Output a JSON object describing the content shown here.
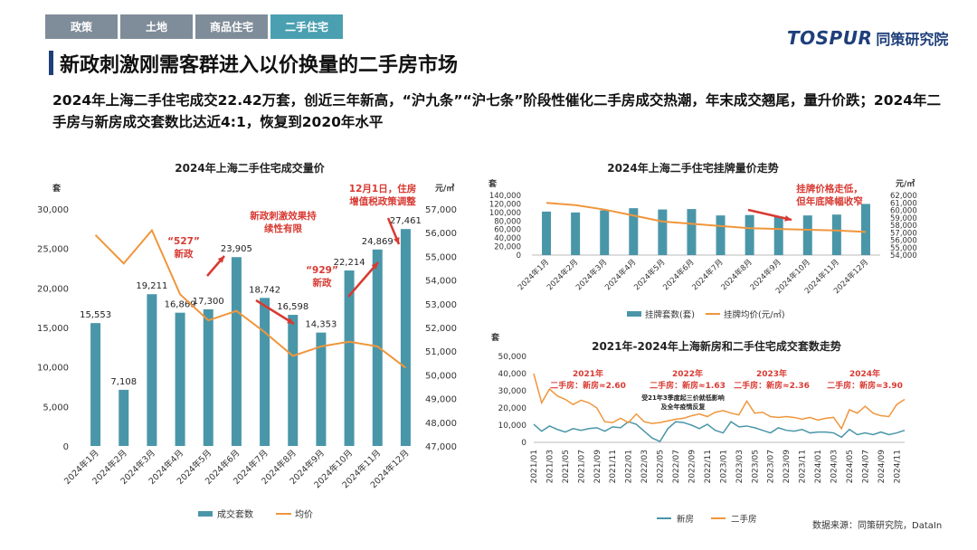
{
  "tabs": [
    "政策",
    "土地",
    "商品住宅",
    "二手住宅"
  ],
  "logo": {
    "brand": "TOSPUR",
    "name": "同策研究院"
  },
  "page_title": "新政刺激刚需客群进入以价换量的二手房市场",
  "summary": "2024年上海二手住宅成交22.42万套，创近三年新高，“沪九条”“沪七条”阶段性催化二手房成交热潮，年末成交翘尾，量升价跌；2024年二手房与新房成交套数比达近4:1，恢复到2020年水平",
  "source": "数据来源：同策研究院，DataIn",
  "colors": {
    "bar": "#4a96a9",
    "line": "#f0963c",
    "new_house": "#4a96a9",
    "annotation": "#d83a33",
    "tab": "#7f8c99",
    "tab_active": "#4aa0b1",
    "title": "#1e3f7a"
  },
  "chart_data": [
    {
      "type": "bar",
      "title": "2024年上海二手住宅成交量价",
      "categories": [
        "2024年1月",
        "2024年2月",
        "2024年3月",
        "2024年4月",
        "2024年5月",
        "2024年6月",
        "2024年7月",
        "2024年8月",
        "2024年9月",
        "2024年10月",
        "2024年11月",
        "2024年12月"
      ],
      "y_left_unit": "套",
      "y_right_unit": "元/㎡",
      "ylim_left": [
        0,
        30000
      ],
      "ylim_right": [
        47000,
        57000
      ],
      "y_left_ticks": [
        "0",
        "5,000",
        "10,000",
        "15,000",
        "20,000",
        "25,000",
        "30,000"
      ],
      "y_right_ticks": [
        "47,000",
        "48,000",
        "49,000",
        "50,000",
        "51,000",
        "52,000",
        "53,000",
        "54,000",
        "55,000",
        "56,000",
        "57,000"
      ],
      "series": [
        {
          "name": "成交套数",
          "type": "bar",
          "axis": "left",
          "values": [
            15553,
            7108,
            19211,
            16869,
            17300,
            23905,
            18742,
            16598,
            14353,
            22214,
            24869,
            27461
          ],
          "labels": [
            "15,553",
            "7,108",
            "19,211",
            "16,869",
            "17,300",
            "23,905",
            "18,742",
            "16,598",
            "14,353",
            "22,214",
            "24,869",
            "27,461"
          ]
        },
        {
          "name": "均价",
          "type": "line",
          "axis": "right",
          "values": [
            55900,
            54700,
            56100,
            53400,
            52300,
            52700,
            51800,
            50800,
            51200,
            51400,
            51200,
            50300
          ]
        }
      ],
      "annotations": [
        "“527”\n新政",
        "新政刺激效果持\n续性有限",
        "“929”\n新政",
        "12月1日，住房\n增值税政策调整"
      ],
      "legend_position": "bottom"
    },
    {
      "type": "bar",
      "title": "2024年上海二手住宅挂牌量价走势",
      "categories": [
        "2024年1月",
        "2024年2月",
        "2024年3月",
        "2024年4月",
        "2024年5月",
        "2024年6月",
        "2024年7月",
        "2024年8月",
        "2024年9月",
        "2024年10月",
        "2024年11月",
        "2024年12月"
      ],
      "y_left_unit": "套",
      "y_right_unit": "元/㎡",
      "ylim_left": [
        0,
        140000
      ],
      "ylim_right": [
        54000,
        62000
      ],
      "y_left_ticks": [
        "0",
        "20,000",
        "40,000",
        "60,000",
        "80,000",
        "100,000",
        "120,000",
        "140,000"
      ],
      "y_right_ticks": [
        "54,000",
        "55,000",
        "56,000",
        "57,000",
        "58,000",
        "59,000",
        "60,000",
        "61,000",
        "62,000"
      ],
      "series": [
        {
          "name": "挂牌套数(套)",
          "type": "bar",
          "axis": "left",
          "values": [
            102000,
            100000,
            105000,
            110000,
            107000,
            108000,
            93000,
            94000,
            90000,
            93000,
            95000,
            120000
          ]
        },
        {
          "name": "挂牌均价(元/㎡)",
          "type": "line",
          "axis": "right",
          "values": [
            61000,
            60700,
            60100,
            59300,
            58500,
            58200,
            57900,
            57600,
            57500,
            57400,
            57300,
            57100
          ]
        }
      ],
      "annotations": [
        "挂牌价格走低，\n但年底降幅收窄"
      ],
      "legend_position": "bottom"
    },
    {
      "type": "line",
      "title": "2021年-2024年上海新房和二手住宅成交套数走势",
      "y_unit": "套",
      "ylim": [
        0,
        50000
      ],
      "y_ticks": [
        "0",
        "10,000",
        "20,000",
        "30,000",
        "40,000",
        "50,000"
      ],
      "x_tick_labels": [
        "2021/01",
        "2021/03",
        "2021/05",
        "2021/07",
        "2021/09",
        "2021/11",
        "2022/01",
        "2022/03",
        "2022/05",
        "2022/07",
        "2022/09",
        "2022/11",
        "2023/01",
        "2023/03",
        "2023/05",
        "2023/07",
        "2023/09",
        "2023/11",
        "2024/01",
        "2024/03",
        "2024/05",
        "2024/07",
        "2024/09",
        "2024/11"
      ],
      "series": [
        {
          "name": "新房",
          "values": [
            10500,
            6500,
            9500,
            7500,
            6000,
            8000,
            7000,
            8000,
            8500,
            6500,
            9000,
            8500,
            12000,
            10500,
            6500,
            2500,
            500,
            8000,
            12000,
            11500,
            10000,
            8000,
            10500,
            7000,
            5500,
            12000,
            9000,
            9500,
            8500,
            7000,
            5500,
            8500,
            7000,
            6500,
            7500,
            5500,
            6000,
            6000,
            5500,
            3000,
            7500,
            4500,
            5500,
            4500,
            6000,
            4500,
            5500,
            7000
          ]
        },
        {
          "name": "二手房",
          "values": [
            40000,
            23000,
            31000,
            27000,
            25000,
            22000,
            24500,
            23000,
            20000,
            12000,
            11500,
            14000,
            11500,
            16500,
            12000,
            11000,
            11500,
            12500,
            13500,
            14000,
            15500,
            16500,
            15000,
            17500,
            18500,
            17000,
            16000,
            24000,
            17000,
            17500,
            15000,
            14500,
            15000,
            14500,
            13500,
            14500,
            13000,
            14000,
            14500,
            8000,
            19000,
            17000,
            21000,
            17000,
            15500,
            15000,
            22000,
            25000
          ]
        }
      ],
      "annotations": [
        {
          "year": "2021年",
          "ratio": "二手房：新房≈2.60"
        },
        {
          "year": "2022年",
          "ratio": "二手房：新房≈1.63"
        },
        {
          "year": "2023年",
          "ratio": "二手房：新房≈2.36"
        },
        {
          "year": "2024年",
          "ratio": "二手房：新房≈3.90"
        }
      ],
      "note": "受21年3季度起三价就低影响\n及全年疫情反复",
      "legend_position": "bottom"
    }
  ]
}
